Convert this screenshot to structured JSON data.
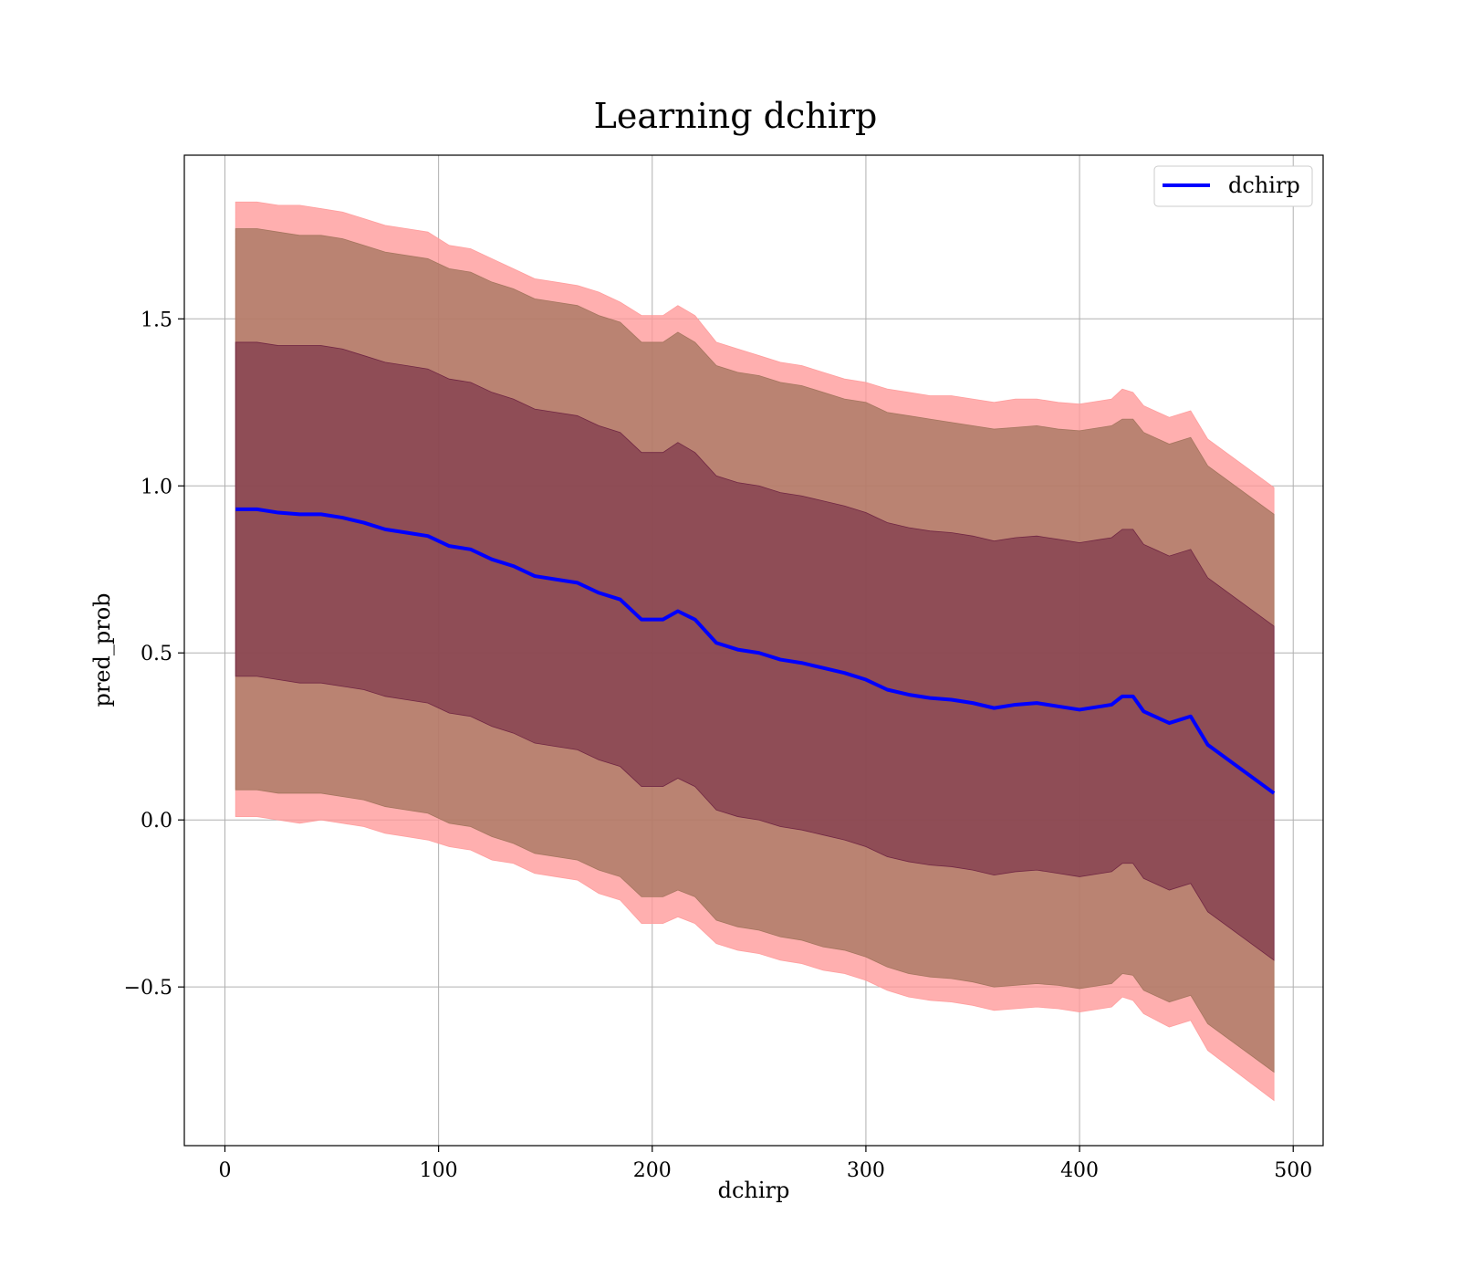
{
  "chart_data": {
    "type": "area",
    "title": "Learning dchirp",
    "xlabel": "dchirp",
    "ylabel": "pred_prob",
    "xlim": [
      -19,
      514
    ],
    "ylim": [
      -0.975,
      1.99
    ],
    "xticks": [
      0,
      100,
      200,
      300,
      400,
      500
    ],
    "yticks": [
      -0.5,
      0.0,
      0.5,
      1.0,
      1.5
    ],
    "ytick_labels": [
      "−0.5",
      "0.0",
      "0.5",
      "1.0",
      "1.5"
    ],
    "grid": true,
    "legend": {
      "position": "top-right",
      "entries": [
        "dchirp"
      ]
    },
    "colors": {
      "line": "#0000ff",
      "band_outer": "#ff9999",
      "band_middle": "#a0725a",
      "band_inner": "#6b2040"
    },
    "x": [
      5,
      15,
      25,
      35,
      45,
      55,
      65,
      75,
      85,
      95,
      105,
      115,
      125,
      135,
      145,
      155,
      165,
      175,
      185,
      195,
      205,
      212,
      220,
      230,
      240,
      250,
      260,
      270,
      280,
      290,
      300,
      310,
      320,
      330,
      340,
      350,
      360,
      370,
      380,
      390,
      400,
      410,
      415,
      420,
      425,
      430,
      442,
      452,
      460,
      491
    ],
    "series": [
      {
        "name": "dchirp",
        "values": [
          0.93,
          0.93,
          0.92,
          0.915,
          0.915,
          0.905,
          0.89,
          0.87,
          0.86,
          0.85,
          0.82,
          0.81,
          0.78,
          0.76,
          0.73,
          0.72,
          0.71,
          0.68,
          0.66,
          0.6,
          0.6,
          0.625,
          0.6,
          0.53,
          0.51,
          0.5,
          0.48,
          0.47,
          0.455,
          0.44,
          0.42,
          0.39,
          0.375,
          0.365,
          0.36,
          0.35,
          0.335,
          0.345,
          0.35,
          0.34,
          0.33,
          0.34,
          0.345,
          0.37,
          0.37,
          0.325,
          0.29,
          0.31,
          0.225,
          0.08
        ]
      }
    ],
    "bands": [
      {
        "level": "outer",
        "upper": [
          1.85,
          1.85,
          1.84,
          1.84,
          1.83,
          1.82,
          1.8,
          1.78,
          1.77,
          1.76,
          1.72,
          1.71,
          1.68,
          1.65,
          1.62,
          1.61,
          1.6,
          1.58,
          1.55,
          1.51,
          1.51,
          1.54,
          1.51,
          1.43,
          1.41,
          1.39,
          1.37,
          1.36,
          1.34,
          1.32,
          1.31,
          1.29,
          1.28,
          1.27,
          1.27,
          1.26,
          1.25,
          1.26,
          1.26,
          1.25,
          1.245,
          1.255,
          1.26,
          1.29,
          1.28,
          1.24,
          1.205,
          1.225,
          1.14,
          0.995
        ],
        "lower": [
          0.01,
          0.01,
          0.0,
          -0.01,
          -0.0,
          -0.01,
          -0.02,
          -0.04,
          -0.05,
          -0.06,
          -0.08,
          -0.09,
          -0.12,
          -0.13,
          -0.16,
          -0.17,
          -0.18,
          -0.22,
          -0.24,
          -0.31,
          -0.31,
          -0.29,
          -0.31,
          -0.37,
          -0.39,
          -0.4,
          -0.42,
          -0.43,
          -0.45,
          -0.46,
          -0.48,
          -0.51,
          -0.53,
          -0.54,
          -0.545,
          -0.555,
          -0.57,
          -0.565,
          -0.56,
          -0.565,
          -0.575,
          -0.565,
          -0.56,
          -0.53,
          -0.54,
          -0.58,
          -0.62,
          -0.6,
          -0.69,
          -0.84
        ]
      },
      {
        "level": "middle",
        "upper": [
          1.77,
          1.77,
          1.76,
          1.75,
          1.75,
          1.74,
          1.72,
          1.7,
          1.69,
          1.68,
          1.65,
          1.64,
          1.61,
          1.59,
          1.56,
          1.55,
          1.54,
          1.51,
          1.49,
          1.43,
          1.43,
          1.46,
          1.43,
          1.36,
          1.34,
          1.33,
          1.31,
          1.3,
          1.28,
          1.26,
          1.25,
          1.22,
          1.21,
          1.2,
          1.19,
          1.18,
          1.17,
          1.175,
          1.18,
          1.17,
          1.165,
          1.175,
          1.18,
          1.2,
          1.2,
          1.16,
          1.125,
          1.145,
          1.06,
          0.915
        ],
        "lower": [
          0.09,
          0.09,
          0.08,
          0.08,
          0.08,
          0.07,
          0.06,
          0.04,
          0.03,
          0.02,
          -0.01,
          -0.02,
          -0.05,
          -0.07,
          -0.1,
          -0.11,
          -0.12,
          -0.15,
          -0.17,
          -0.23,
          -0.23,
          -0.21,
          -0.23,
          -0.3,
          -0.32,
          -0.33,
          -0.35,
          -0.36,
          -0.38,
          -0.39,
          -0.41,
          -0.44,
          -0.46,
          -0.47,
          -0.475,
          -0.485,
          -0.5,
          -0.495,
          -0.49,
          -0.495,
          -0.505,
          -0.495,
          -0.49,
          -0.46,
          -0.465,
          -0.51,
          -0.545,
          -0.525,
          -0.61,
          -0.755
        ]
      },
      {
        "level": "inner",
        "upper": [
          1.43,
          1.43,
          1.42,
          1.42,
          1.42,
          1.41,
          1.39,
          1.37,
          1.36,
          1.35,
          1.32,
          1.31,
          1.28,
          1.26,
          1.23,
          1.22,
          1.21,
          1.18,
          1.16,
          1.1,
          1.1,
          1.13,
          1.1,
          1.03,
          1.01,
          1.0,
          0.98,
          0.97,
          0.955,
          0.94,
          0.92,
          0.89,
          0.875,
          0.865,
          0.86,
          0.85,
          0.835,
          0.845,
          0.85,
          0.84,
          0.83,
          0.84,
          0.845,
          0.87,
          0.87,
          0.825,
          0.79,
          0.81,
          0.725,
          0.58
        ],
        "lower": [
          0.43,
          0.43,
          0.42,
          0.41,
          0.41,
          0.4,
          0.39,
          0.37,
          0.36,
          0.35,
          0.32,
          0.31,
          0.28,
          0.26,
          0.23,
          0.22,
          0.21,
          0.18,
          0.16,
          0.1,
          0.1,
          0.125,
          0.1,
          0.03,
          0.01,
          0.0,
          -0.02,
          -0.03,
          -0.045,
          -0.06,
          -0.08,
          -0.11,
          -0.125,
          -0.135,
          -0.14,
          -0.15,
          -0.165,
          -0.155,
          -0.15,
          -0.16,
          -0.17,
          -0.16,
          -0.155,
          -0.13,
          -0.13,
          -0.175,
          -0.21,
          -0.19,
          -0.275,
          -0.42
        ]
      }
    ]
  }
}
